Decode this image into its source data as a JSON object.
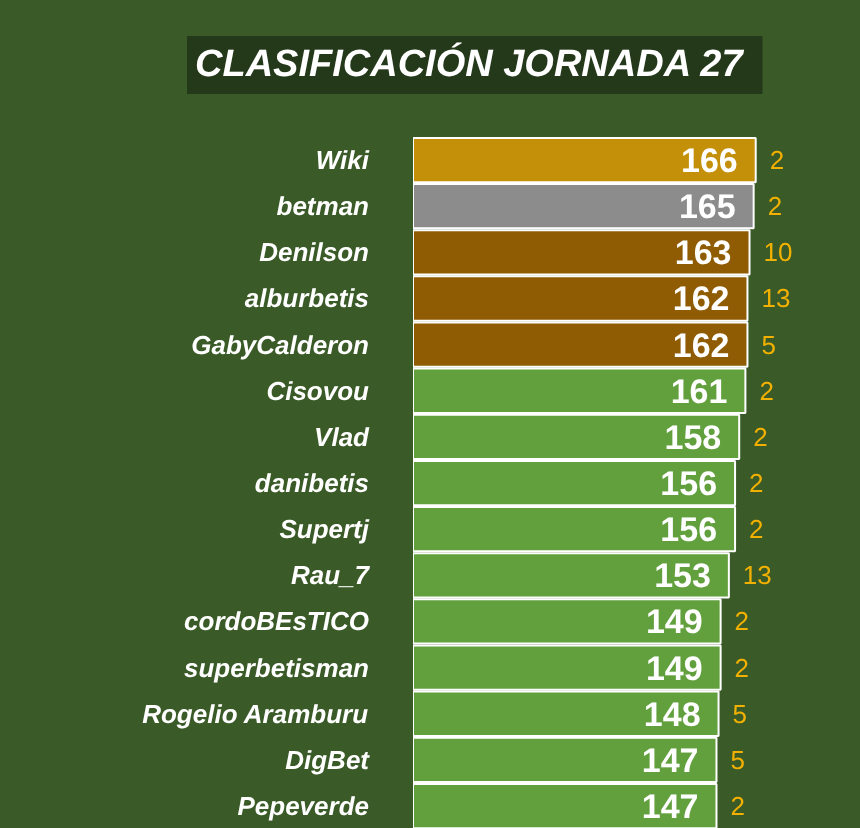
{
  "chart_data": {
    "type": "bar",
    "orientation": "horizontal",
    "title": "CLASIFICACIÓN  JORNADA 27",
    "categories": [
      "Wiki",
      "betman",
      "Denilson",
      "alburbetis",
      "GabyCalderon",
      "Cisovou",
      "Vlad",
      "danibetis",
      "Supertj",
      "Rau_7",
      "cordoBEsTICO",
      "superbetisman",
      "Rogelio Aramburu",
      "DigBet",
      "Pepeverde"
    ],
    "values": [
      166,
      165,
      163,
      162,
      162,
      161,
      158,
      156,
      156,
      153,
      149,
      149,
      148,
      147,
      147
    ],
    "colors": [
      "#c4900a",
      "#8c8c8c",
      "#8f5c04",
      "#8f5c04",
      "#8f5c04",
      "#62a03e",
      "#62a03e",
      "#62a03e",
      "#62a03e",
      "#62a03e",
      "#62a03e",
      "#62a03e",
      "#62a03e",
      "#62a03e",
      "#62a03e"
    ],
    "data_labels": true,
    "xlim": [
      0,
      217
    ],
    "tick_labels": "y",
    "grid": false,
    "annotations": [
      {
        "text": "2",
        "x": 166,
        "y": "Wiki"
      },
      {
        "text": "2",
        "x": 165,
        "y": "betman"
      },
      {
        "text": "10",
        "x": 163,
        "y": "Denilson"
      },
      {
        "text": "13",
        "x": 162,
        "y": "alburbetis"
      },
      {
        "text": "5",
        "x": 162,
        "y": "GabyCalderon"
      },
      {
        "text": "2",
        "x": 161,
        "y": "Cisovou"
      },
      {
        "text": "2",
        "x": 158,
        "y": "Vlad"
      },
      {
        "text": "2",
        "x": 156,
        "y": "danibetis"
      },
      {
        "text": "2",
        "x": 156,
        "y": "Supertj"
      },
      {
        "text": "13",
        "x": 153,
        "y": "Rau_7"
      },
      {
        "text": "2",
        "x": 149,
        "y": "cordoBEsTICO"
      },
      {
        "text": "2",
        "x": 149,
        "y": "superbetisman"
      },
      {
        "text": "5",
        "x": 148,
        "y": "Rogelio Aramburu"
      },
      {
        "text": "5",
        "x": 147,
        "y": "DigBet"
      },
      {
        "text": "2",
        "x": 147,
        "y": "Pepeverde"
      }
    ]
  }
}
